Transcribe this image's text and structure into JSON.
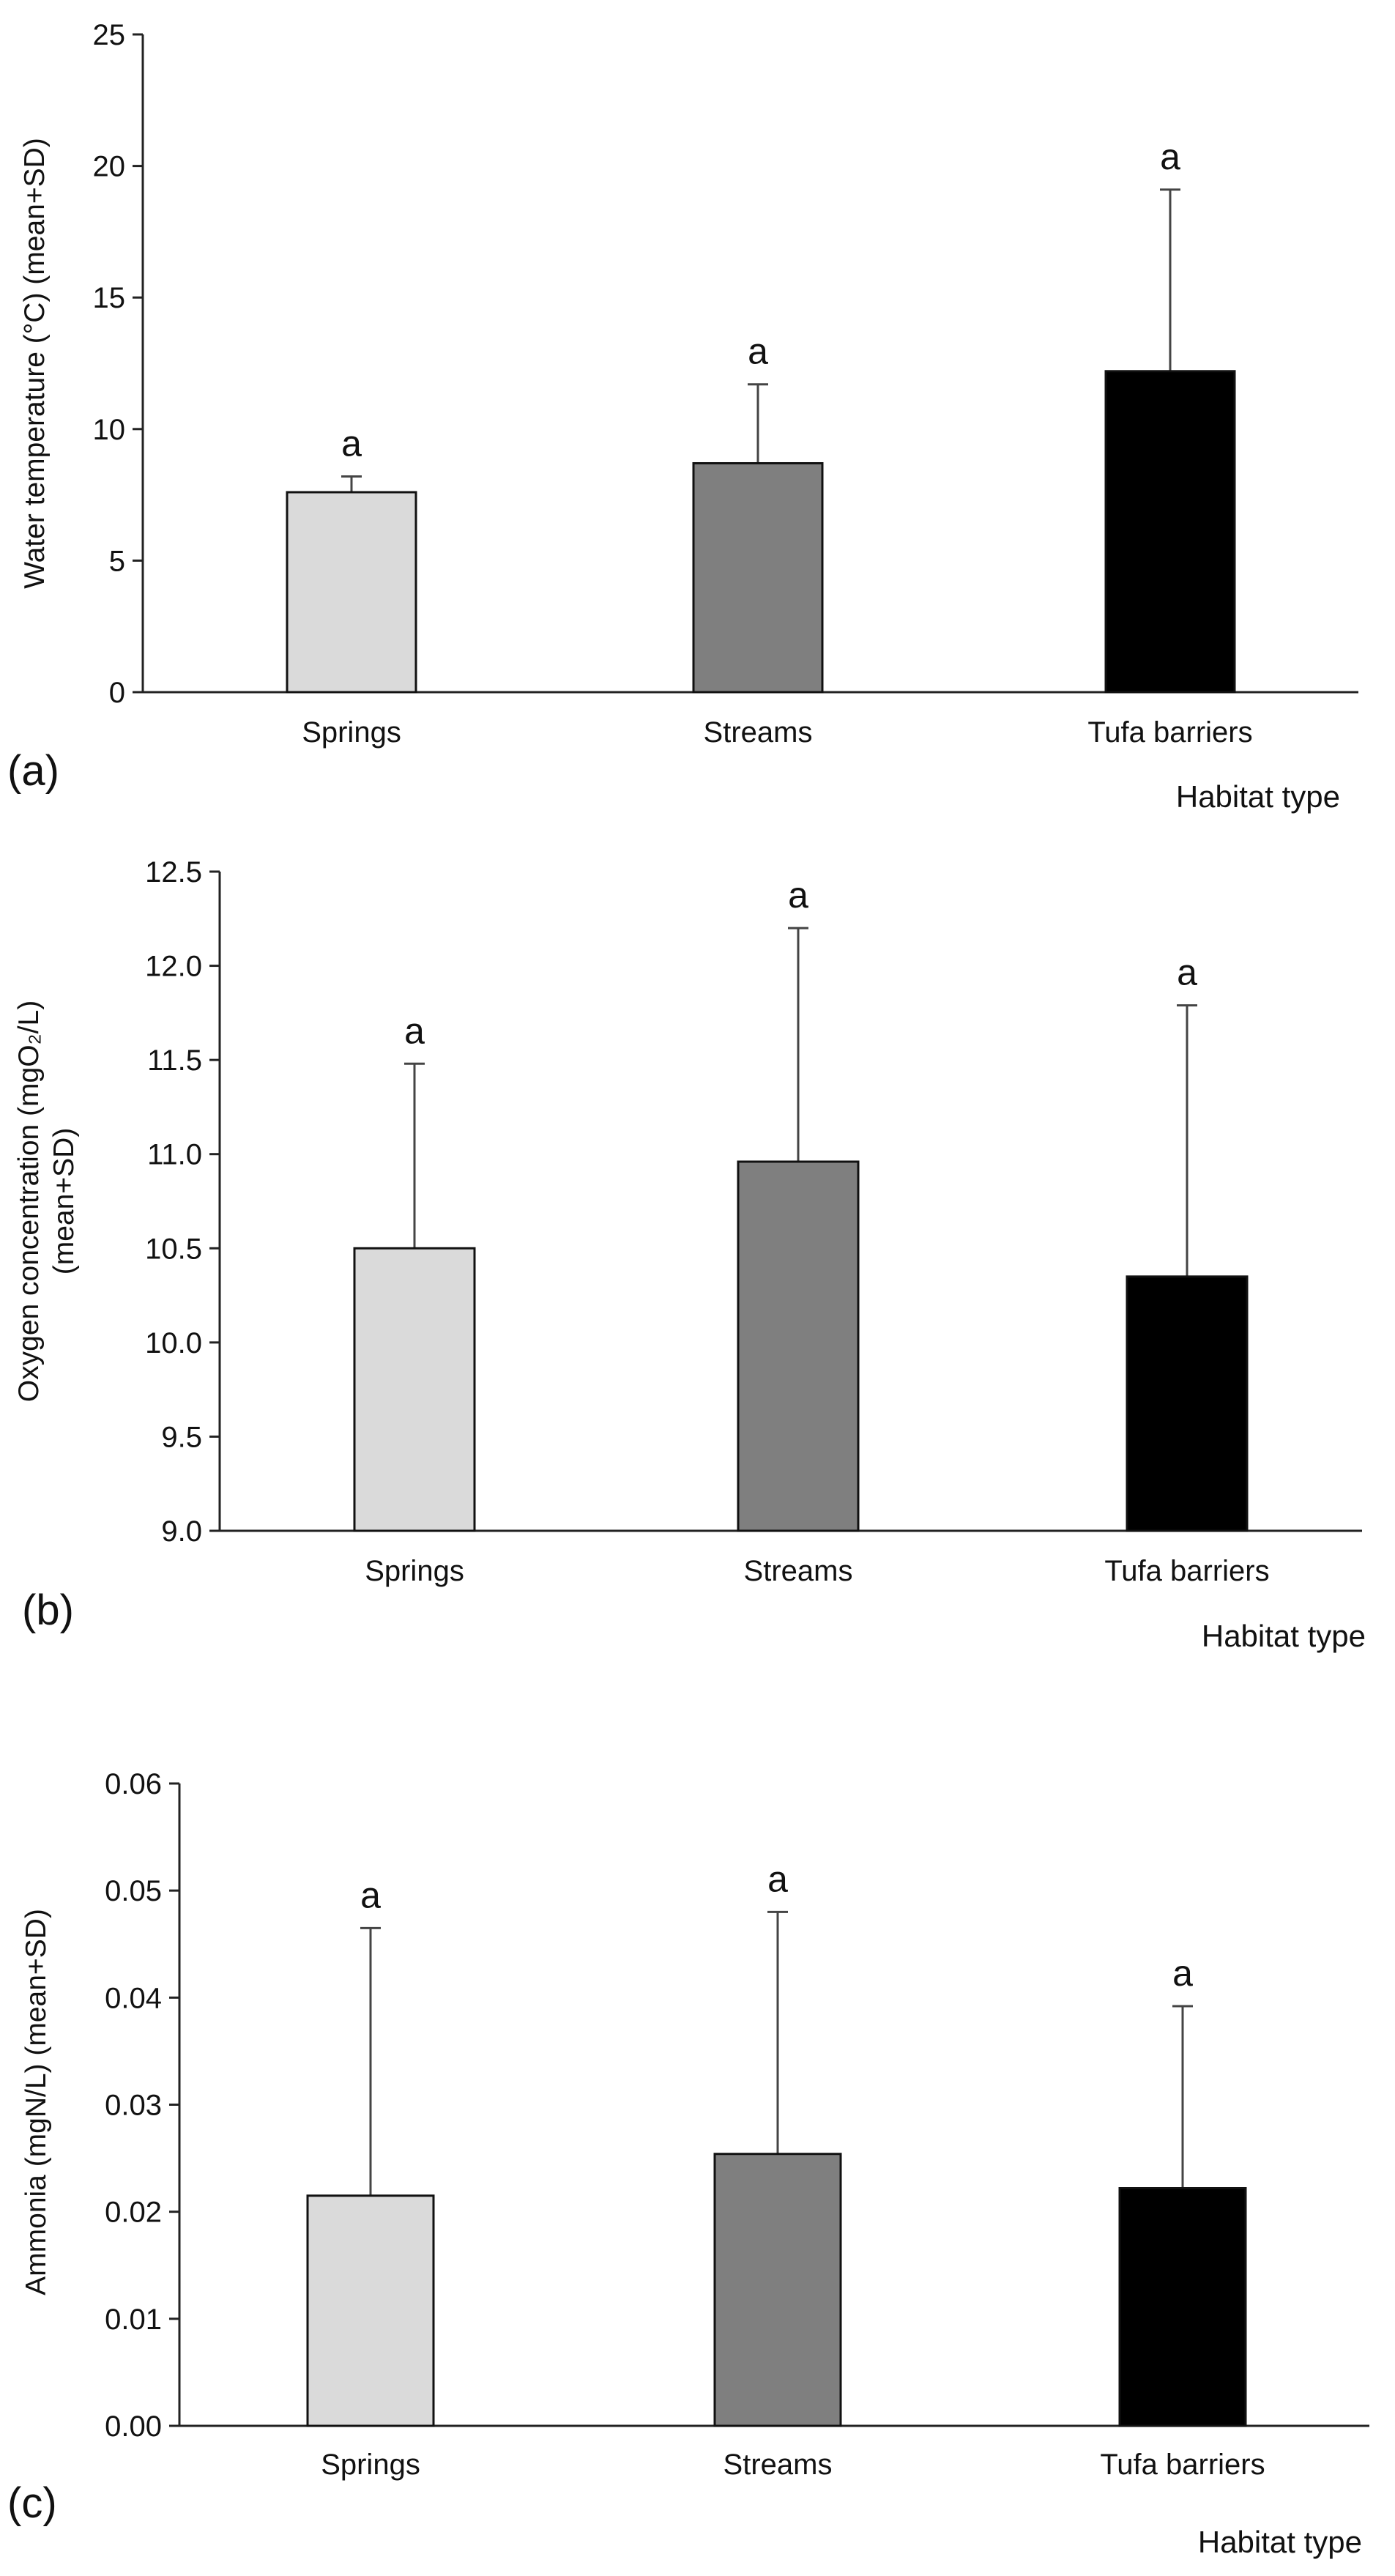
{
  "chart_data": [
    {
      "type": "bar",
      "panel_label": "(a)",
      "ylabel": "Water temperature (°C) (mean+SD)",
      "xlabel": "Habitat type",
      "categories": [
        "Springs",
        "Streams",
        "Tufa barriers"
      ],
      "values": [
        7.6,
        8.7,
        12.2
      ],
      "errors": [
        0.6,
        3.0,
        6.9
      ],
      "significance": [
        "a",
        "a",
        "a"
      ],
      "ylim": [
        0,
        25
      ],
      "yticks": [
        "0",
        "5",
        "10",
        "15",
        "20",
        "25"
      ],
      "grid": false
    },
    {
      "type": "bar",
      "panel_label": "(b)",
      "ylabel_line1": "Oxygen concentration (mgO₂/L)",
      "ylabel_line2": "(mean+SD)",
      "xlabel": "Habitat type",
      "categories": [
        "Springs",
        "Streams",
        "Tufa barriers"
      ],
      "values": [
        10.5,
        10.96,
        10.35
      ],
      "errors": [
        0.98,
        1.24,
        1.44
      ],
      "significance": [
        "a",
        "a",
        "a"
      ],
      "ylim": [
        9.0,
        12.5
      ],
      "yticks": [
        "9.0",
        "9.5",
        "10.0",
        "10.5",
        "11.0",
        "11.5",
        "12.0",
        "12.5"
      ],
      "grid": false
    },
    {
      "type": "bar",
      "panel_label": "(c)",
      "ylabel": "Ammonia (mgN/L) (mean+SD)",
      "xlabel": "Habitat type",
      "categories": [
        "Springs",
        "Streams",
        "Tufa barriers"
      ],
      "values": [
        0.0215,
        0.0254,
        0.0222
      ],
      "errors": [
        0.025,
        0.0226,
        0.017
      ],
      "significance": [
        "a",
        "a",
        "a"
      ],
      "ylim": [
        0,
        0.06
      ],
      "yticks": [
        "0.00",
        "0.01",
        "0.02",
        "0.03",
        "0.04",
        "0.05",
        "0.06"
      ],
      "grid": false
    }
  ],
  "colors": {
    "springs": "#dadada",
    "streams": "#7f7f7f",
    "tufa": "#000000",
    "axis": "#222222",
    "error": "#444444"
  }
}
